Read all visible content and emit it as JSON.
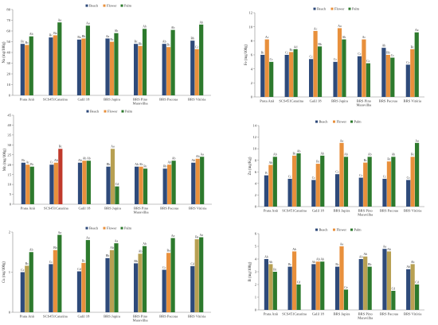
{
  "colors": {
    "Beach": "#2e4a7a",
    "Flower": "#e8903c",
    "Palm": "#2d7a2d",
    "red_bar": "#c0392b",
    "tan_bar": "#b8a052"
  },
  "chart_data": [
    {
      "type": "bar",
      "ylabel": "Na (mg/100g)",
      "ylim": [
        0,
        80
      ],
      "yticks": [
        0,
        10,
        20,
        30,
        40,
        50,
        60,
        70,
        80
      ],
      "legend": [
        "Beach",
        "Flower",
        "Palm"
      ],
      "categories": [
        "Prata Anã",
        "SCS451Catarina",
        "Galil 18",
        "BRS Japira",
        "BRS Pino Maravilha",
        "BRS Pacoua",
        "BRS Vitória"
      ],
      "series": [
        {
          "name": "Beach",
          "values": [
            48,
            54,
            52,
            53,
            48,
            48,
            51
          ]
        },
        {
          "name": "Flower",
          "values": [
            47,
            56,
            53,
            50,
            46,
            45,
            43
          ]
        },
        {
          "name": "Palm",
          "values": [
            55,
            68,
            65,
            58,
            62,
            61,
            66
          ]
        }
      ],
      "letters": [
        [
          "Bc",
          "Bc",
          "Ab"
        ],
        [
          "Bc",
          "Ba",
          "Aa"
        ],
        [
          "Ba",
          "Bb",
          "Aa"
        ],
        [
          "Aa",
          "Bc",
          "Ab"
        ],
        [
          "Bc",
          "Bb",
          "Ab"
        ],
        [
          "Ab",
          "Bc",
          "Ab"
        ],
        [
          "Bb",
          "Cc",
          "Ab"
        ]
      ],
      "bar_colors": [
        [
          "#2e4a7a",
          "#e8903c",
          "#2d7a2d"
        ],
        [
          "#2e4a7a",
          "#e8903c",
          "#2d7a2d"
        ],
        [
          "#2e4a7a",
          "#e8903c",
          "#2d7a2d"
        ],
        [
          "#2e4a7a",
          "#e8903c",
          "#2d7a2d"
        ],
        [
          "#2e4a7a",
          "#e8903c",
          "#2d7a2d"
        ],
        [
          "#2e4a7a",
          "#e8903c",
          "#2d7a2d"
        ],
        [
          "#2e4a7a",
          "#e8903c",
          "#2d7a2d"
        ]
      ]
    },
    {
      "type": "bar",
      "ylabel": "Fe (mg/100g)",
      "ylim": [
        0,
        12
      ],
      "yticks": [
        0,
        2,
        4,
        6,
        8,
        10,
        12
      ],
      "legend": [
        "Beach",
        "Flower",
        "Palm"
      ],
      "categories": [
        "Prata Anã",
        "SCS451Catarina",
        "Galil 18",
        "BRS Japira",
        "BRS Pino Maravilha",
        "BRS Pacoua",
        "BRS Vitória"
      ],
      "series": [
        {
          "name": "Beach",
          "values": [
            6.0,
            6.0,
            5.4,
            5.0,
            5.8,
            7.0,
            4.6
          ]
        },
        {
          "name": "Flower",
          "values": [
            8.2,
            6.4,
            9.4,
            9.8,
            8.2,
            6.0,
            6.8
          ]
        },
        {
          "name": "Palm",
          "values": [
            5.0,
            6.8,
            7.2,
            8.2,
            4.8,
            5.6,
            9.2
          ]
        }
      ],
      "letters": [
        [
          "Bc",
          "Ac",
          "Cc"
        ],
        [
          "Cc",
          "Bc",
          "Ad"
        ],
        [
          "Cc",
          "Ac",
          "Bb"
        ],
        [
          "Cc",
          "Aa",
          "Ab"
        ],
        [
          "Cc",
          "Ac",
          "Cc"
        ],
        [
          "Ab",
          "Bb",
          "Cc"
        ],
        [
          "Cc",
          "Bc",
          "Aa"
        ]
      ],
      "bar_colors": [
        [
          "#2e4a7a",
          "#e8903c",
          "#2d7a2d"
        ],
        [
          "#2e4a7a",
          "#e8903c",
          "#2d7a2d"
        ],
        [
          "#2e4a7a",
          "#e8903c",
          "#2d7a2d"
        ],
        [
          "#2e4a7a",
          "#e8903c",
          "#2d7a2d"
        ],
        [
          "#2e4a7a",
          "#e8903c",
          "#2d7a2d"
        ],
        [
          "#2e4a7a",
          "#e8903c",
          "#2d7a2d"
        ],
        [
          "#2e4a7a",
          "#e8903c",
          "#2d7a2d"
        ]
      ]
    },
    {
      "type": "bar",
      "ylabel": "Mn (mg/100g)",
      "ylim": [
        0,
        45
      ],
      "yticks": [
        0,
        5,
        10,
        15,
        20,
        25,
        30,
        35,
        40,
        45
      ],
      "legend": [
        "Beach",
        "Flower",
        "Palm"
      ],
      "categories": [
        "Prata Anã",
        "SCS451Catarina",
        "Galil 18",
        "BRS Japira",
        "BRS Pino Maravilha",
        "BRS Pacoua",
        "BRS Vitória"
      ],
      "series": [
        {
          "name": "Beach",
          "values": [
            21,
            20,
            21,
            19,
            19,
            18,
            21
          ]
        },
        {
          "name": "Flower",
          "values": [
            20,
            21,
            22,
            28,
            19,
            20,
            23
          ]
        },
        {
          "name": "Palm",
          "values": [
            19,
            28,
            22,
            9,
            18,
            22,
            24
          ]
        }
      ],
      "letters": [
        [
          "Bc",
          "Ac",
          "Bc"
        ],
        [
          "Cc",
          "Ab",
          "Bc"
        ],
        [
          "Ab",
          "Ab",
          "Ab"
        ],
        [
          "Bb",
          "Aa",
          "Cd"
        ],
        [
          "Ab",
          "Ab",
          "Bc"
        ],
        [
          "Bb",
          "Ab",
          "Ab"
        ],
        [
          "Ab",
          "Ab",
          "Aa"
        ]
      ],
      "bar_colors": [
        [
          "#2e4a7a",
          "#e8903c",
          "#2d7a2d"
        ],
        [
          "#2e4a7a",
          "#e8903c",
          "#c0392b"
        ],
        [
          "#2e4a7a",
          "#e8903c",
          "#2d7a2d"
        ],
        [
          "#2e4a7a",
          "#b8a052",
          "#2d7a2d"
        ],
        [
          "#2e4a7a",
          "#e8903c",
          "#2d7a2d"
        ],
        [
          "#2e4a7a",
          "#e8903c",
          "#2d7a2d"
        ],
        [
          "#2e4a7a",
          "#e8903c",
          "#2d7a2d"
        ]
      ]
    },
    {
      "type": "bar",
      "ylabel": "Zn (mg/Kg)",
      "ylim": [
        0,
        14
      ],
      "yticks": [
        0,
        2,
        4,
        6,
        8,
        10,
        12,
        14
      ],
      "legend": [
        "Beach",
        "Flower",
        "Palm"
      ],
      "categories": [
        "Prata Anã",
        "SCS451Catarina",
        "Galil 18",
        "BRS Japira",
        "BRS Pino Maravilha",
        "BRS Pacoua",
        "BRS Vitória"
      ],
      "series": [
        {
          "name": "Beach",
          "values": [
            5.4,
            4.8,
            4.6,
            5.6,
            5.0,
            4.8,
            4.6
          ]
        },
        {
          "name": "Flower",
          "values": [
            7.2,
            8.8,
            7.4,
            11.0,
            7.6,
            7.8,
            8.6
          ]
        },
        {
          "name": "Palm",
          "values": [
            8.6,
            9.2,
            8.8,
            8.6,
            8.6,
            8.6,
            11.0
          ]
        }
      ],
      "letters": [
        [
          "B",
          "Ab",
          "Ab"
        ],
        [
          "Cc",
          "Bc",
          "Ab"
        ],
        [
          "Cc",
          "Bc",
          "Ab"
        ],
        [
          "Cc",
          "Aa",
          "Ab"
        ],
        [
          "Cc",
          "Bc",
          "Ab"
        ],
        [
          "Cc",
          "Bc",
          "Ab"
        ],
        [
          "Cc",
          "Bc",
          "Aa"
        ]
      ],
      "bar_colors": [
        [
          "#2e4a7a",
          "#e8903c",
          "#2d7a2d"
        ],
        [
          "#2e4a7a",
          "#e8903c",
          "#2d7a2d"
        ],
        [
          "#2e4a7a",
          "#e8903c",
          "#2d7a2d"
        ],
        [
          "#2e4a7a",
          "#e8903c",
          "#2d7a2d"
        ],
        [
          "#2e4a7a",
          "#e8903c",
          "#2d7a2d"
        ],
        [
          "#2e4a7a",
          "#e8903c",
          "#2d7a2d"
        ],
        [
          "#2e4a7a",
          "#e8903c",
          "#2d7a2d"
        ]
      ]
    },
    {
      "type": "bar",
      "ylabel": "Cu (mg/100g)",
      "ylim": [
        0,
        2
      ],
      "yticks": [
        0,
        1,
        2
      ],
      "legend": [
        "Beach",
        "Flower",
        "Palm"
      ],
      "categories": [
        "Prata Anã",
        "SCS451Catarina",
        "Galil 18",
        "BRS Japira",
        "BRS Pino Maravilha",
        "BRS Pacoua",
        "BRS Vitória"
      ],
      "series": [
        {
          "name": "Beach",
          "values": [
            1.0,
            1.2,
            1.02,
            1.35,
            1.22,
            1.06,
            1.15
          ]
        },
        {
          "name": "Flower",
          "values": [
            1.16,
            1.55,
            1.23,
            1.55,
            1.46,
            1.48,
            1.82
          ]
        },
        {
          "name": "Palm",
          "values": [
            1.5,
            1.93,
            1.8,
            1.72,
            1.65,
            1.85,
            1.87
          ]
        }
      ],
      "letters": [
        [
          "Cc",
          "Bc",
          "Ab"
        ],
        [
          "Cc",
          "Bb",
          "Aa"
        ],
        [
          "Cd",
          "Bc",
          "Aa"
        ],
        [
          "Bb",
          "Ab",
          "Aa"
        ],
        [
          "Bb",
          "Ab",
          "Ab"
        ],
        [
          "Cc",
          "Ba",
          "Aa"
        ],
        [
          "Cd",
          "Ba",
          "Aa"
        ]
      ],
      "bar_colors": [
        [
          "#2e4a7a",
          "#b8a052",
          "#2d7a2d"
        ],
        [
          "#2e4a7a",
          "#e8903c",
          "#2d7a2d"
        ],
        [
          "#2e4a7a",
          "#e8903c",
          "#2d7a2d"
        ],
        [
          "#2e4a7a",
          "#b8a052",
          "#2d7a2d"
        ],
        [
          "#2e4a7a",
          "#b8a052",
          "#2d7a2d"
        ],
        [
          "#2e4a7a",
          "#e8903c",
          "#2d7a2d"
        ],
        [
          "#2e4a7a",
          "#b8a052",
          "#2d7a2d"
        ]
      ]
    },
    {
      "type": "bar",
      "ylabel": "B (mg/100g)",
      "ylim": [
        0,
        6
      ],
      "yticks": [
        0,
        1,
        2,
        3,
        4,
        5,
        6
      ],
      "legend": [
        "Beach",
        "Flower",
        "Palm"
      ],
      "categories": [
        "Prata Anã",
        "SCS451Catarina",
        "Galil 18",
        "BRS Japira",
        "BRS Pino Maravilha",
        "BRS Pacoua",
        "BRS Vitória"
      ],
      "series": [
        {
          "name": "Beach",
          "values": [
            4.0,
            3.4,
            3.6,
            3.4,
            4.0,
            4.8,
            3.2
          ]
        },
        {
          "name": "Flower",
          "values": [
            3.6,
            4.6,
            3.8,
            5.0,
            4.2,
            4.6,
            3.6
          ]
        },
        {
          "name": "Palm",
          "values": [
            3.0,
            2.0,
            3.8,
            1.6,
            3.4,
            1.5,
            2.0
          ]
        }
      ],
      "letters": [
        [
          "Ab",
          "Ab",
          "Bc"
        ],
        [
          "Bc",
          "Ab",
          "Cd"
        ],
        [
          "Ab",
          "Ab",
          "Ab"
        ],
        [
          "Bc",
          "Aa",
          "Ce"
        ],
        [
          "Ab",
          "Ab",
          "Bb"
        ],
        [
          "Aa",
          "Ab",
          "Cd"
        ],
        [
          "Ab",
          "Ab",
          "Cd"
        ]
      ],
      "bar_colors": [
        [
          "#2e4a7a",
          "#b8a052",
          "#2d7a2d"
        ],
        [
          "#2e4a7a",
          "#e8903c",
          "#2d7a2d"
        ],
        [
          "#2e4a7a",
          "#e8903c",
          "#2d7a2d"
        ],
        [
          "#2e4a7a",
          "#e8903c",
          "#2d7a2d"
        ],
        [
          "#2e4a7a",
          "#b8a052",
          "#2d7a2d"
        ],
        [
          "#2e4a7a",
          "#b8a052",
          "#2d7a2d"
        ],
        [
          "#2e4a7a",
          "#b8a052",
          "#2d7a2d"
        ]
      ]
    }
  ]
}
